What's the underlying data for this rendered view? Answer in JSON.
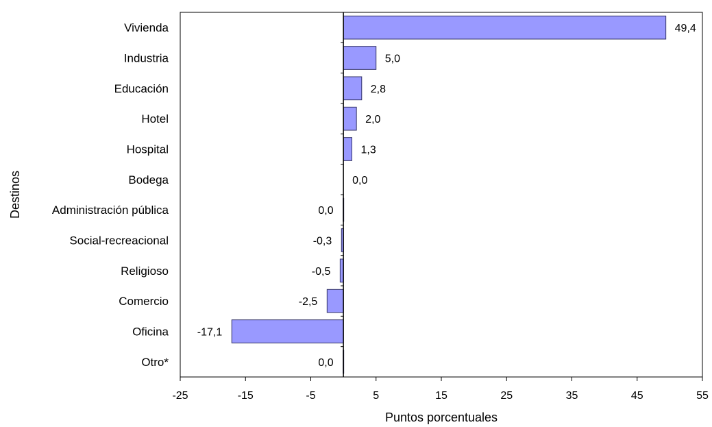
{
  "chart_data": {
    "type": "bar",
    "orientation": "horizontal",
    "categories": [
      "Vivienda",
      "Industria",
      "Educación",
      "Hotel",
      "Hospital",
      "Bodega",
      "Administración pública",
      "Social-recreacional",
      "Religioso",
      "Comercio",
      "Oficina",
      "Otro*"
    ],
    "values": [
      49.4,
      5.0,
      2.8,
      2.0,
      1.3,
      0.0,
      -0.05,
      -0.3,
      -0.5,
      -2.5,
      -17.1,
      -0.05
    ],
    "data_labels": [
      "49,4",
      "5,0",
      "2,8",
      "2,0",
      "1,3",
      "0,0",
      "0,0",
      "-0,3",
      "-0,5",
      "-2,5",
      "-17,1",
      "0,0"
    ],
    "xlabel": "Puntos porcentuales",
    "ylabel": "Destinos",
    "xlim": [
      -25,
      55
    ],
    "xticks": [
      -25,
      -15,
      -5,
      5,
      15,
      25,
      35,
      45,
      55
    ],
    "bar_color": "#9999ff",
    "bar_edge_color": "#333366",
    "grid": false,
    "legend": "none"
  }
}
